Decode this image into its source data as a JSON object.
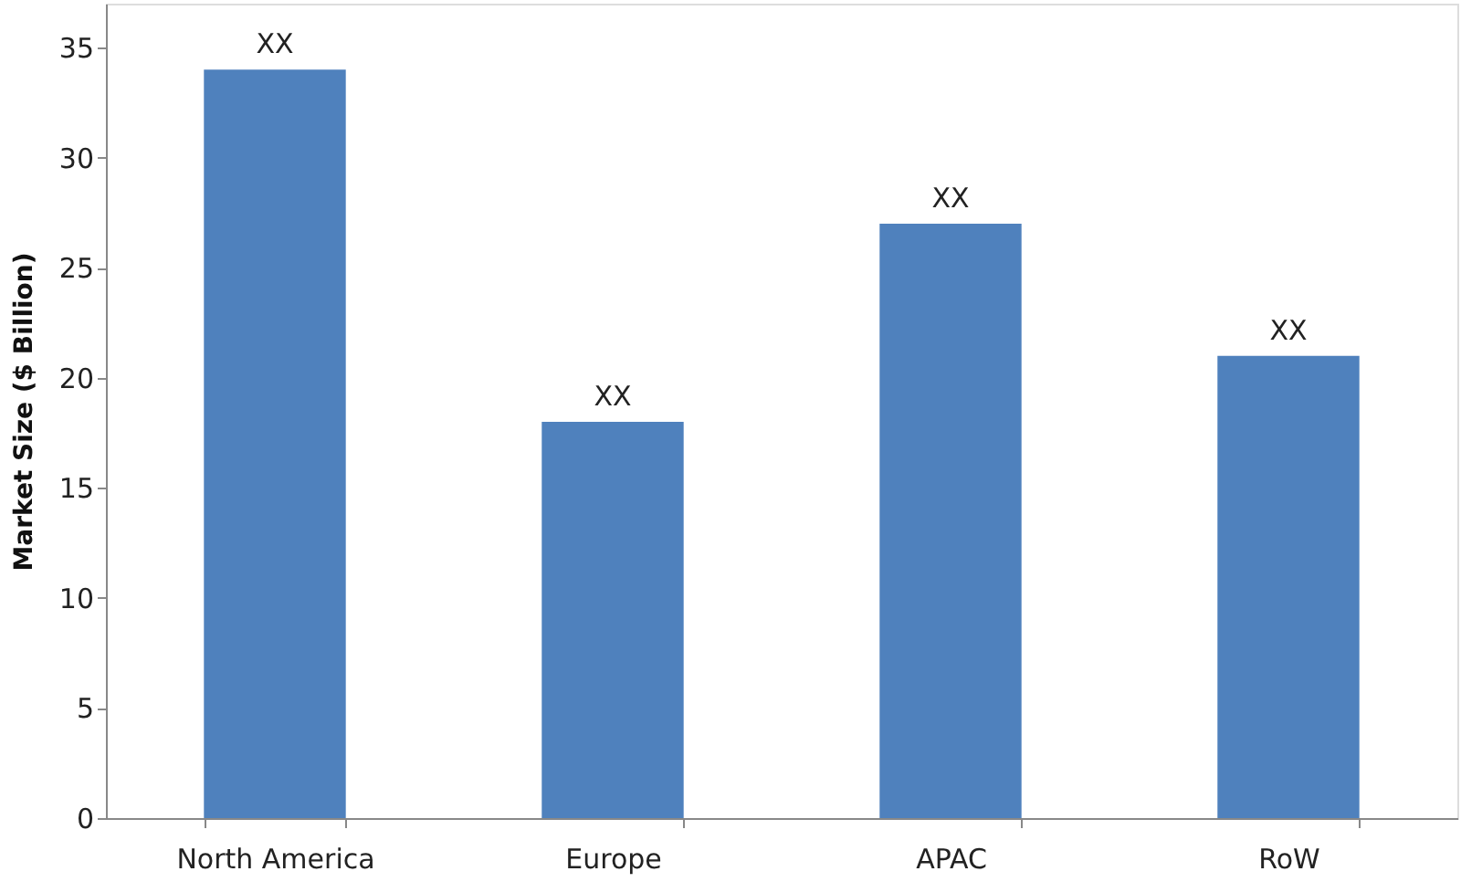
{
  "chart_data": {
    "type": "bar",
    "ylabel": "Market Size ($ Billion)",
    "categories": [
      "North America",
      "Europe",
      "APAC",
      "RoW"
    ],
    "values": [
      34,
      18,
      27,
      21
    ],
    "value_labels": [
      "XX",
      "XX",
      "XX",
      "XX"
    ],
    "color": "#4f81bd",
    "ylim": [
      0,
      37
    ],
    "yticks": [
      0,
      5,
      10,
      15,
      20,
      25,
      30,
      35
    ],
    "grid": false
  }
}
